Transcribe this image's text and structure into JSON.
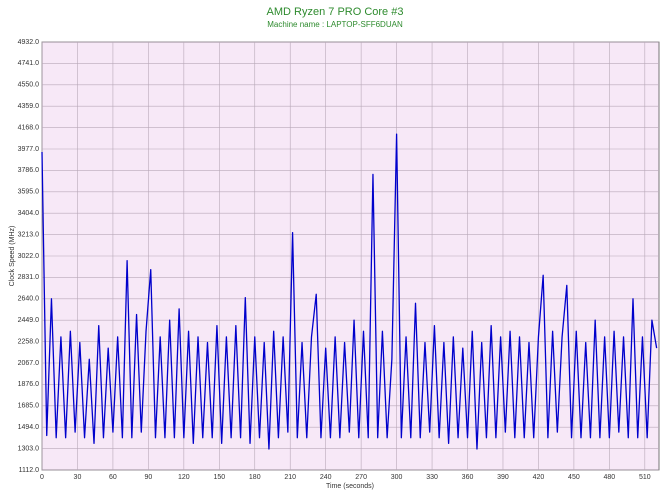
{
  "chart_data": {
    "type": "line",
    "title": "AMD Ryzen 7 PRO Core #3",
    "subtitle": "Machine name : LAPTOP-SFF6DUAN",
    "x_label": "Time (seconds)",
    "y_label": "Clock Speed (MHz)",
    "grid": true,
    "xlim": [
      0,
      522
    ],
    "xticks": [
      0,
      30,
      60,
      90,
      120,
      150,
      180,
      210,
      240,
      270,
      300,
      330,
      360,
      390,
      420,
      450,
      480,
      510
    ],
    "ylim": [
      1112,
      4932
    ],
    "yticks": [
      {
        "value": 1112,
        "label": "1112.0"
      },
      {
        "value": 1303,
        "label": "1303.0"
      },
      {
        "value": 1494,
        "label": "1494.0"
      },
      {
        "value": 1685,
        "label": "1685.0"
      },
      {
        "value": 1876,
        "label": "1876.0"
      },
      {
        "value": 2067,
        "label": "2067.0"
      },
      {
        "value": 2258,
        "label": "2258.0"
      },
      {
        "value": 2449,
        "label": "2449.0"
      },
      {
        "value": 2640,
        "label": "2640.0"
      },
      {
        "value": 2831,
        "label": "2831.0"
      },
      {
        "value": 3022,
        "label": "3022.0"
      },
      {
        "value": 3213,
        "label": "3213.0"
      },
      {
        "value": 3404,
        "label": "3404.0"
      },
      {
        "value": 3595,
        "label": "3595.0"
      },
      {
        "value": 3786,
        "label": "3786.0"
      },
      {
        "value": 3977,
        "label": "3977.0"
      },
      {
        "value": 4168,
        "label": "4168.0"
      },
      {
        "value": 4359,
        "label": "4359.0"
      },
      {
        "value": 4550,
        "label": "4550.0"
      },
      {
        "value": 4741,
        "label": "4741.0"
      },
      {
        "value": 4932,
        "label": "4932.0"
      }
    ],
    "x": [
      0,
      4,
      8,
      12,
      16,
      20,
      24,
      28,
      32,
      36,
      40,
      44,
      48,
      52,
      56,
      60,
      64,
      68,
      72,
      76,
      80,
      84,
      88,
      92,
      96,
      100,
      104,
      108,
      112,
      116,
      120,
      124,
      128,
      132,
      136,
      140,
      144,
      148,
      152,
      156,
      160,
      164,
      168,
      172,
      176,
      180,
      184,
      188,
      192,
      196,
      200,
      204,
      208,
      212,
      216,
      220,
      224,
      228,
      232,
      236,
      240,
      244,
      248,
      252,
      256,
      260,
      264,
      268,
      272,
      276,
      280,
      284,
      288,
      292,
      296,
      300,
      304,
      308,
      312,
      316,
      320,
      324,
      328,
      332,
      336,
      340,
      344,
      348,
      352,
      356,
      360,
      364,
      368,
      372,
      376,
      380,
      384,
      388,
      392,
      396,
      400,
      404,
      408,
      412,
      416,
      420,
      424,
      428,
      432,
      436,
      440,
      444,
      448,
      452,
      456,
      460,
      464,
      468,
      472,
      476,
      480,
      484,
      488,
      492,
      496,
      500,
      504,
      508,
      512,
      516,
      520
    ],
    "series": [
      {
        "color": "#0000cc",
        "values": [
          3950,
          1420,
          2640,
          1400,
          2300,
          1400,
          2350,
          1450,
          2250,
          1400,
          2100,
          1350,
          2400,
          1400,
          2200,
          1450,
          2300,
          1400,
          2980,
          1400,
          2500,
          1450,
          2350,
          2900,
          1400,
          2300,
          1400,
          2450,
          1400,
          2550,
          1400,
          2350,
          1350,
          2300,
          1400,
          2250,
          1400,
          2400,
          1350,
          2300,
          1400,
          2400,
          1400,
          2650,
          1350,
          2300,
          1400,
          2250,
          1300,
          2350,
          1400,
          2300,
          1450,
          3230,
          1400,
          2250,
          1400,
          2300,
          2680,
          1400,
          2200,
          1400,
          2300,
          1400,
          2250,
          1450,
          2450,
          1400,
          2350,
          1400,
          3750,
          1400,
          2350,
          1400,
          2100,
          4110,
          1400,
          2300,
          1400,
          2600,
          1400,
          2250,
          1450,
          2400,
          1400,
          2250,
          1350,
          2300,
          1400,
          2200,
          1400,
          2350,
          1300,
          2250,
          1400,
          2400,
          1400,
          2300,
          1450,
          2350,
          1400,
          2300,
          1400,
          2250,
          1400,
          2300,
          2850,
          1400,
          2350,
          1450,
          2300,
          2760,
          1400,
          2350,
          1400,
          2250,
          1400,
          2450,
          1400,
          2300,
          1400,
          2350,
          1450,
          2300,
          1400,
          2640,
          1400,
          2300,
          1400,
          2450,
          2200
        ]
      }
    ]
  }
}
